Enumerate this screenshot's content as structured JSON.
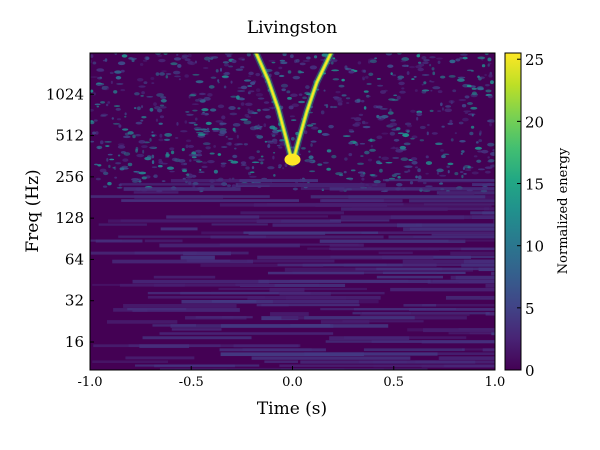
{
  "chart_data": {
    "type": "heatmap",
    "title": "Livingston",
    "xlabel": "Time (s)",
    "ylabel": "Freq (Hz)",
    "xlim": [
      -1.0,
      1.0
    ],
    "ylim": [
      10,
      2048
    ],
    "yscale": "log2",
    "x_ticks": [
      -1.0,
      -0.5,
      0.0,
      0.5,
      1.0
    ],
    "x_tick_labels": [
      "-1.0",
      "-0.5",
      "0.0",
      "0.5",
      "1.0"
    ],
    "y_ticks": [
      16,
      32,
      64,
      128,
      256,
      512,
      1024
    ],
    "y_tick_labels": [
      "16",
      "32",
      "64",
      "128",
      "256",
      "512",
      "1024"
    ],
    "colorbar": {
      "label": "Normalized energy",
      "range": [
        0,
        25.5
      ],
      "ticks": [
        0,
        5,
        10,
        15,
        20,
        25
      ],
      "tick_labels": [
        "0",
        "5",
        "10",
        "15",
        "20",
        "25"
      ],
      "colormap": "viridis"
    },
    "features": [
      {
        "kind": "chirp",
        "peak_time": 0.0,
        "min_frequency": 320,
        "peak_energy": 25,
        "left_arm": [
          [
            -0.18,
            2048
          ],
          [
            -0.12,
            1300
          ],
          [
            -0.07,
            800
          ],
          [
            -0.03,
            480
          ],
          [
            0.0,
            320
          ]
        ],
        "right_arm": [
          [
            0.0,
            320
          ],
          [
            0.03,
            470
          ],
          [
            0.07,
            760
          ],
          [
            0.12,
            1250
          ],
          [
            0.19,
            2048
          ]
        ]
      }
    ]
  },
  "colors": {
    "background_low": "#440154",
    "accent": "#fde725"
  }
}
